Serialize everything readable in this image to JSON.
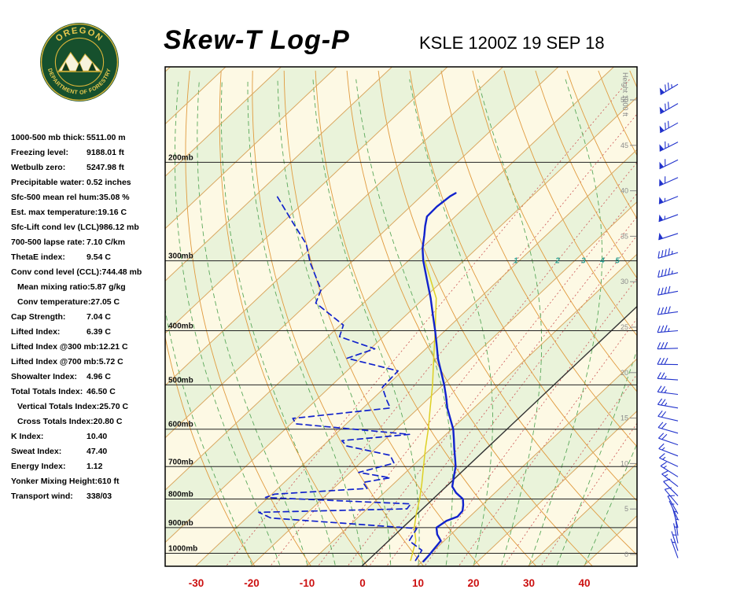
{
  "header": {
    "title": "Skew-T Log-P",
    "station_line": "KSLE 1200Z 19 SEP 18",
    "logo": {
      "line1": "OREGON",
      "line2": "DEPARTMENT OF FORESTRY"
    }
  },
  "stats": [
    {
      "label": "1000-500 mb thick:",
      "value": "5511.00 m",
      "indent": false
    },
    {
      "label": "Freezing level:",
      "value": "9188.01 ft",
      "indent": false
    },
    {
      "label": "Wetbulb zero:",
      "value": "5247.98 ft",
      "indent": false
    },
    {
      "label": "Precipitable water:",
      "value": "0.52 inches",
      "indent": false
    },
    {
      "label": "Sfc-500 mean rel hum:",
      "value": "35.08 %",
      "indent": false
    },
    {
      "label": "Est. max temperature:",
      "value": "19.16 C",
      "indent": false
    },
    {
      "label": "Sfc-Lift cond lev (LCL)",
      "value": "986.12 mb",
      "indent": false
    },
    {
      "label": "700-500 lapse rate:",
      "value": "7.10 C/km",
      "indent": false
    },
    {
      "label": "ThetaE index:",
      "value": "9.54 C",
      "indent": false
    },
    {
      "label": "Conv cond level (CCL):",
      "value": "744.48 mb",
      "indent": false
    },
    {
      "label": "Mean mixing ratio:",
      "value": "5.87 g/kg",
      "indent": true
    },
    {
      "label": "Conv temperature:",
      "value": "27.05 C",
      "indent": true
    },
    {
      "label": "Cap Strength:",
      "value": "7.04 C",
      "indent": false
    },
    {
      "label": "Lifted Index:",
      "value": "6.39 C",
      "indent": false
    },
    {
      "label": "Lifted Index @300 mb:",
      "value": "12.21 C",
      "indent": false
    },
    {
      "label": "Lifted Index @700 mb:",
      "value": "5.72 C",
      "indent": false
    },
    {
      "label": "Showalter Index:",
      "value": "4.96 C",
      "indent": false
    },
    {
      "label": "Total Totals Index:",
      "value": "46.50 C",
      "indent": false
    },
    {
      "label": "Vertical Totals Index:",
      "value": "25.70 C",
      "indent": true
    },
    {
      "label": "Cross Totals Index:",
      "value": "20.80 C",
      "indent": true
    },
    {
      "label": "K Index:",
      "value": "10.40",
      "indent": false
    },
    {
      "label": "Sweat Index:",
      "value": "47.40",
      "indent": false
    },
    {
      "label": "Energy Index:",
      "value": "1.12",
      "indent": false
    },
    {
      "label": "Yonker Mixing Height:",
      "value": "610 ft",
      "indent": false
    },
    {
      "label": "Transport wind:",
      "value": "338/03",
      "indent": false
    }
  ],
  "chart_data": {
    "type": "line",
    "title": "Skew-T Log-P sounding",
    "station": "KSLE 1200Z 19 SEP 18",
    "pressure_axis": {
      "values": [
        200,
        300,
        400,
        500,
        600,
        700,
        800,
        900,
        1000
      ],
      "labels": [
        "200mb",
        "300mb",
        "400mb",
        "500mb",
        "600mb",
        "700mb",
        "800mb",
        "900mb",
        "1000mb"
      ]
    },
    "temp_axis": {
      "ticks": [
        -30,
        -20,
        -10,
        0,
        10,
        20,
        30,
        40
      ],
      "unit": "C"
    },
    "height_axis": {
      "ticks": [
        50,
        45,
        40,
        35,
        30,
        25,
        20,
        15,
        10,
        5,
        0
      ],
      "label": "Height 1000 ft"
    },
    "mixing_ratio_labels": [
      1,
      2,
      3,
      4,
      5
    ],
    "grid": {
      "isotherms_C": {
        "min": -130,
        "max": 50,
        "step": 10
      },
      "dry_adiabats_K": [
        250,
        260,
        270,
        280,
        290,
        300,
        310,
        320,
        330,
        340,
        350,
        360,
        370,
        380,
        390,
        400,
        410,
        420,
        430,
        440
      ],
      "moist_adiabats_C": [
        -20,
        -15,
        -10,
        -5,
        0,
        5,
        10,
        15,
        20,
        25,
        30,
        35,
        40
      ],
      "mixing_ratio_g_kg": [
        0.5,
        1,
        2,
        3,
        4,
        5,
        8,
        12,
        20,
        30
      ]
    },
    "series": [
      {
        "name": "wetbulb",
        "style": "solid",
        "color": "#ddd024",
        "points": [
          [
            1030,
            7.7
          ],
          [
            950,
            4.9
          ],
          [
            900,
            2.1
          ],
          [
            850,
            -0.2
          ],
          [
            800,
            -2.4
          ],
          [
            750,
            -5.0
          ],
          [
            700,
            -7.9
          ],
          [
            650,
            -11.0
          ],
          [
            600,
            -14.2
          ],
          [
            550,
            -17.9
          ],
          [
            500,
            -21.9
          ],
          [
            450,
            -26.6
          ],
          [
            400,
            -31.8
          ],
          [
            350,
            -37.8
          ],
          [
            300,
            -47.0
          ]
        ]
      },
      {
        "name": "dewpoint",
        "style": "dashed",
        "color": "#1122cc",
        "points": [
          [
            1030,
            8.6
          ],
          [
            988,
            7.8
          ],
          [
            950,
            3.7
          ],
          [
            903,
            2.7
          ],
          [
            865,
            -25.6
          ],
          [
            845,
            -28.9
          ],
          [
            833,
            -2.8
          ],
          [
            816,
            -3.1
          ],
          [
            795,
            -30.5
          ],
          [
            784,
            -29.5
          ],
          [
            766,
            -13.9
          ],
          [
            747,
            -15.8
          ],
          [
            733,
            -11.8
          ],
          [
            717,
            -18.5
          ],
          [
            690,
            -13.9
          ],
          [
            668,
            -16.1
          ],
          [
            643,
            -25.7
          ],
          [
            629,
            -27.6
          ],
          [
            613,
            -16.6
          ],
          [
            587,
            -39.1
          ],
          [
            574,
            -40.7
          ],
          [
            550,
            -25.1
          ],
          [
            532,
            -27.3
          ],
          [
            505,
            -30.5
          ],
          [
            472,
            -30.8
          ],
          [
            448,
            -42.4
          ],
          [
            431,
            -39.2
          ],
          [
            410,
            -47.9
          ],
          [
            391,
            -49.4
          ],
          [
            357,
            -58.6
          ],
          [
            338,
            -60.2
          ],
          [
            322,
            -63.3
          ],
          [
            302,
            -67.4
          ],
          [
            280,
            -71.6
          ],
          [
            255,
            -78.5
          ],
          [
            230,
            -86.0
          ]
        ]
      },
      {
        "name": "temperature",
        "style": "solid",
        "color": "#1122cc",
        "points": [
          [
            1034,
            10.2
          ],
          [
            1005,
            10.0
          ],
          [
            988,
            9.8
          ],
          [
            950,
            9.4
          ],
          [
            925,
            7.5
          ],
          [
            900,
            6.1
          ],
          [
            875,
            6.6
          ],
          [
            860,
            7.8
          ],
          [
            840,
            7.6
          ],
          [
            820,
            6.6
          ],
          [
            800,
            5.4
          ],
          [
            780,
            3.0
          ],
          [
            760,
            1.1
          ],
          [
            730,
            -0.5
          ],
          [
            700,
            -2.1
          ],
          [
            675,
            -3.9
          ],
          [
            650,
            -5.8
          ],
          [
            625,
            -7.7
          ],
          [
            600,
            -9.7
          ],
          [
            575,
            -12.2
          ],
          [
            550,
            -14.8
          ],
          [
            525,
            -17.2
          ],
          [
            500,
            -19.8
          ],
          [
            475,
            -22.7
          ],
          [
            450,
            -25.8
          ],
          [
            425,
            -28.7
          ],
          [
            400,
            -31.8
          ],
          [
            375,
            -35.2
          ],
          [
            350,
            -38.8
          ],
          [
            325,
            -42.9
          ],
          [
            300,
            -47.3
          ],
          [
            285,
            -49.8
          ],
          [
            270,
            -52.0
          ],
          [
            260,
            -53.6
          ],
          [
            250,
            -55.1
          ],
          [
            240,
            -55.2
          ],
          [
            230,
            -54.8
          ],
          [
            227,
            -54.4
          ]
        ]
      }
    ],
    "wind_barbs": [
      [
        1020,
        340,
        3
      ],
      [
        990,
        342,
        3
      ],
      [
        960,
        348,
        5
      ],
      [
        930,
        352,
        5
      ],
      [
        900,
        345,
        5
      ],
      [
        870,
        335,
        5
      ],
      [
        850,
        330,
        10
      ],
      [
        820,
        320,
        10
      ],
      [
        790,
        315,
        10
      ],
      [
        760,
        308,
        15
      ],
      [
        730,
        302,
        15
      ],
      [
        700,
        295,
        15
      ],
      [
        670,
        291,
        15
      ],
      [
        640,
        289,
        20
      ],
      [
        610,
        286,
        20
      ],
      [
        580,
        283,
        20
      ],
      [
        550,
        280,
        25
      ],
      [
        520,
        277,
        25
      ],
      [
        490,
        274,
        25
      ],
      [
        460,
        271,
        30
      ],
      [
        430,
        268,
        30
      ],
      [
        400,
        265,
        35
      ],
      [
        370,
        262,
        40
      ],
      [
        340,
        259,
        40
      ],
      [
        315,
        257,
        45
      ],
      [
        290,
        254,
        45
      ],
      [
        268,
        252,
        50
      ],
      [
        248,
        250,
        55
      ],
      [
        230,
        248,
        55
      ],
      [
        213,
        246,
        60
      ],
      [
        198,
        244,
        60
      ],
      [
        184,
        243,
        65
      ],
      [
        170,
        241,
        70
      ],
      [
        157,
        240,
        70
      ],
      [
        145,
        239,
        75
      ]
    ],
    "colors": {
      "band_a": "#fdf9e4",
      "band_b": "#eaf3da",
      "isotherm": "#d9a760",
      "isotherm_zero": "#333333",
      "dry_adiabat": "#e09a3e",
      "moist_adiabat": "#5aa85a",
      "mixing_ratio": "#cc5555",
      "pressure_line": "#222222",
      "border": "#000000",
      "temp_trace": "#1122cc",
      "dew_trace": "#1122cc",
      "wetbulb_trace": "#ddd024",
      "wind": "#2233cc",
      "temp_axis": "#cc1111",
      "height_axis": "#8a8a8a",
      "mixing_label": "#2a9d8f"
    }
  }
}
